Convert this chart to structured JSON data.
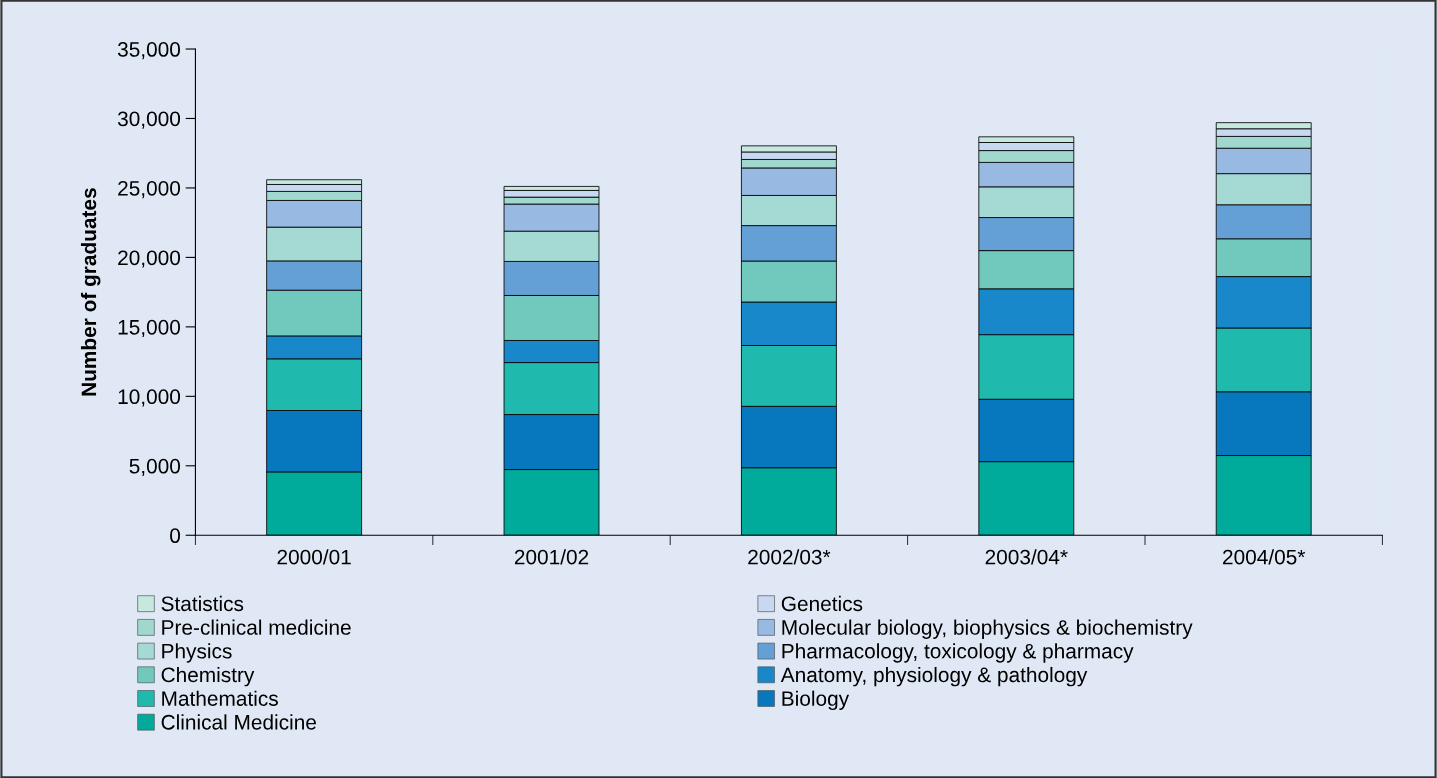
{
  "chart_data": {
    "type": "bar",
    "stacked": true,
    "ylabel": "Number of graduates",
    "categories": [
      "2000/01",
      "2001/02",
      "2002/03*",
      "2003/04*",
      "2004/05*"
    ],
    "series": [
      {
        "name": "Clinical Medicine",
        "color": "#00ab9c",
        "values": [
          4560,
          4730,
          4860,
          5300,
          5740
        ]
      },
      {
        "name": "Biology",
        "color": "#0777be",
        "values": [
          4420,
          3960,
          4420,
          4490,
          4590
        ]
      },
      {
        "name": "Mathematics",
        "color": "#20b9ae",
        "values": [
          3720,
          3740,
          4380,
          4650,
          4590
        ]
      },
      {
        "name": "Anatomy, physiology & pathology",
        "color": "#1888cb",
        "values": [
          1650,
          1590,
          3130,
          3300,
          3700
        ]
      },
      {
        "name": "Chemistry",
        "color": "#71c9bd",
        "values": [
          3290,
          3240,
          2950,
          2750,
          2720
        ]
      },
      {
        "name": "Pharmacology, toxicology & pharmacy",
        "color": "#64a0d6",
        "values": [
          2110,
          2450,
          2550,
          2380,
          2450
        ]
      },
      {
        "name": "Physics",
        "color": "#a4dad3",
        "values": [
          2430,
          2180,
          2170,
          2210,
          2240
        ]
      },
      {
        "name": "Molecular biology, biophysics & biochemistry",
        "color": "#97b9e2",
        "values": [
          1920,
          1950,
          1980,
          1760,
          1830
        ]
      },
      {
        "name": "Pre-clinical medicine",
        "color": "#a0d8cf",
        "values": [
          650,
          500,
          610,
          850,
          850
        ]
      },
      {
        "name": "Genetics",
        "color": "#c8d8f0",
        "values": [
          500,
          480,
          540,
          580,
          550
        ]
      },
      {
        "name": "Statistics",
        "color": "#c6e8df",
        "values": [
          340,
          290,
          440,
          410,
          440
        ]
      }
    ],
    "ylim": [
      0,
      35000
    ],
    "yticks": [
      {
        "value": 0,
        "label": "0"
      },
      {
        "value": 5000,
        "label": "5,000"
      },
      {
        "value": 10000,
        "label": "10,000"
      },
      {
        "value": 15000,
        "label": "15,000"
      },
      {
        "value": 20000,
        "label": "20,000"
      },
      {
        "value": 25000,
        "label": "25,000"
      },
      {
        "value": 30000,
        "label": "30,000"
      },
      {
        "value": 35000,
        "label": "35,000"
      }
    ],
    "grid": false,
    "legend": "bottom"
  }
}
